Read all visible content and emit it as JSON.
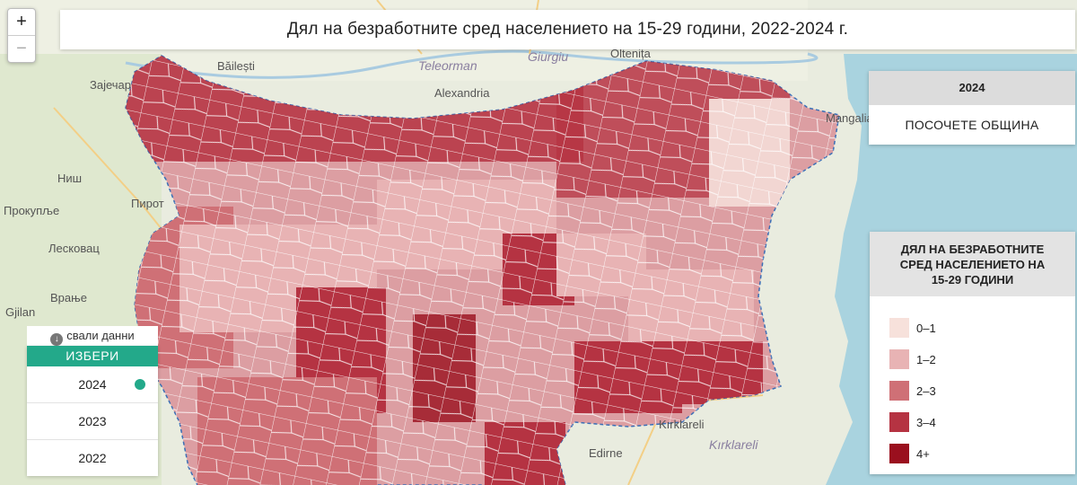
{
  "title": "Дял на безработните сред населението на 15-29 години, 2022-2024 г.",
  "zoom": {
    "in": "+",
    "out": "−"
  },
  "info_box": {
    "year": "2024",
    "hint": "ПОСОЧЕТЕ ОБЩИНА"
  },
  "legend": {
    "title_lines": [
      "ДЯЛ НА БЕЗРАБОТНИТЕ",
      "СРЕД НАСЕЛЕНИЕТО НА",
      "15-29 ГОДИНИ"
    ],
    "items": [
      {
        "label": "0–1",
        "color": "#f7e1db"
      },
      {
        "label": "1–2",
        "color": "#e8b3b4"
      },
      {
        "label": "2–3",
        "color": "#cf7076"
      },
      {
        "label": "3–4",
        "color": "#b53342"
      },
      {
        "label": "4+",
        "color": "#9a0f1e"
      }
    ]
  },
  "download_label": "свали данни",
  "year_picker": {
    "header": "ИЗБЕРИ",
    "years": [
      "2024",
      "2023",
      "2022"
    ],
    "selected": "2024",
    "accent": "#23a98a"
  },
  "map_labels": [
    {
      "text": "Băilești",
      "style": "normal"
    },
    {
      "text": "Зајечар",
      "style": "normal"
    },
    {
      "text": "Teleorman",
      "style": "italic"
    },
    {
      "text": "Giurgiu",
      "style": "italic"
    },
    {
      "text": "Oltenița",
      "style": "normal"
    },
    {
      "text": "Alexandria",
      "style": "normal"
    },
    {
      "text": "Mangalia",
      "style": "normal"
    },
    {
      "text": "Ниш",
      "style": "normal"
    },
    {
      "text": "Прокупље",
      "style": "normal"
    },
    {
      "text": "Пирот",
      "style": "normal"
    },
    {
      "text": "Лесковац",
      "style": "normal"
    },
    {
      "text": "Врање",
      "style": "normal"
    },
    {
      "text": "Gjilan",
      "style": "normal"
    },
    {
      "text": "Kırklareli",
      "style": "normal"
    },
    {
      "text": "Kırklareli",
      "style": "italic"
    },
    {
      "text": "Edirne",
      "style": "normal"
    }
  ]
}
